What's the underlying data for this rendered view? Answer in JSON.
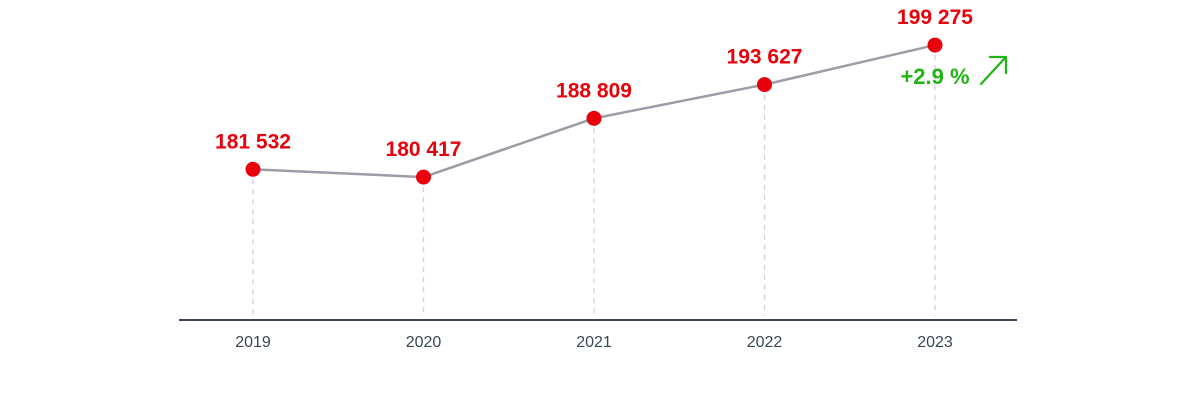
{
  "colors": {
    "point": "#e8000b",
    "value_text": "#e8000b",
    "line": "#9b9ca6",
    "axis": "#3a4557",
    "guide": "#cfd2d8",
    "tick_text": "#3a4557",
    "change": "#1fb50f"
  },
  "chart_data": {
    "type": "line",
    "title": "",
    "xlabel": "",
    "ylabel": "",
    "categories": [
      "2019",
      "2020",
      "2021",
      "2022",
      "2023"
    ],
    "series": [
      {
        "values": [
          181532,
          180417,
          188809,
          193627,
          199275
        ],
        "labels": [
          "181 532",
          "180 417",
          "188 809",
          "193 627",
          "199 275"
        ]
      }
    ],
    "ylim": [
      160000,
      202000
    ],
    "grid": false,
    "legend": "none",
    "annotation": {
      "text": "+2.9 %",
      "icon": "arrow-up-right-icon"
    }
  }
}
